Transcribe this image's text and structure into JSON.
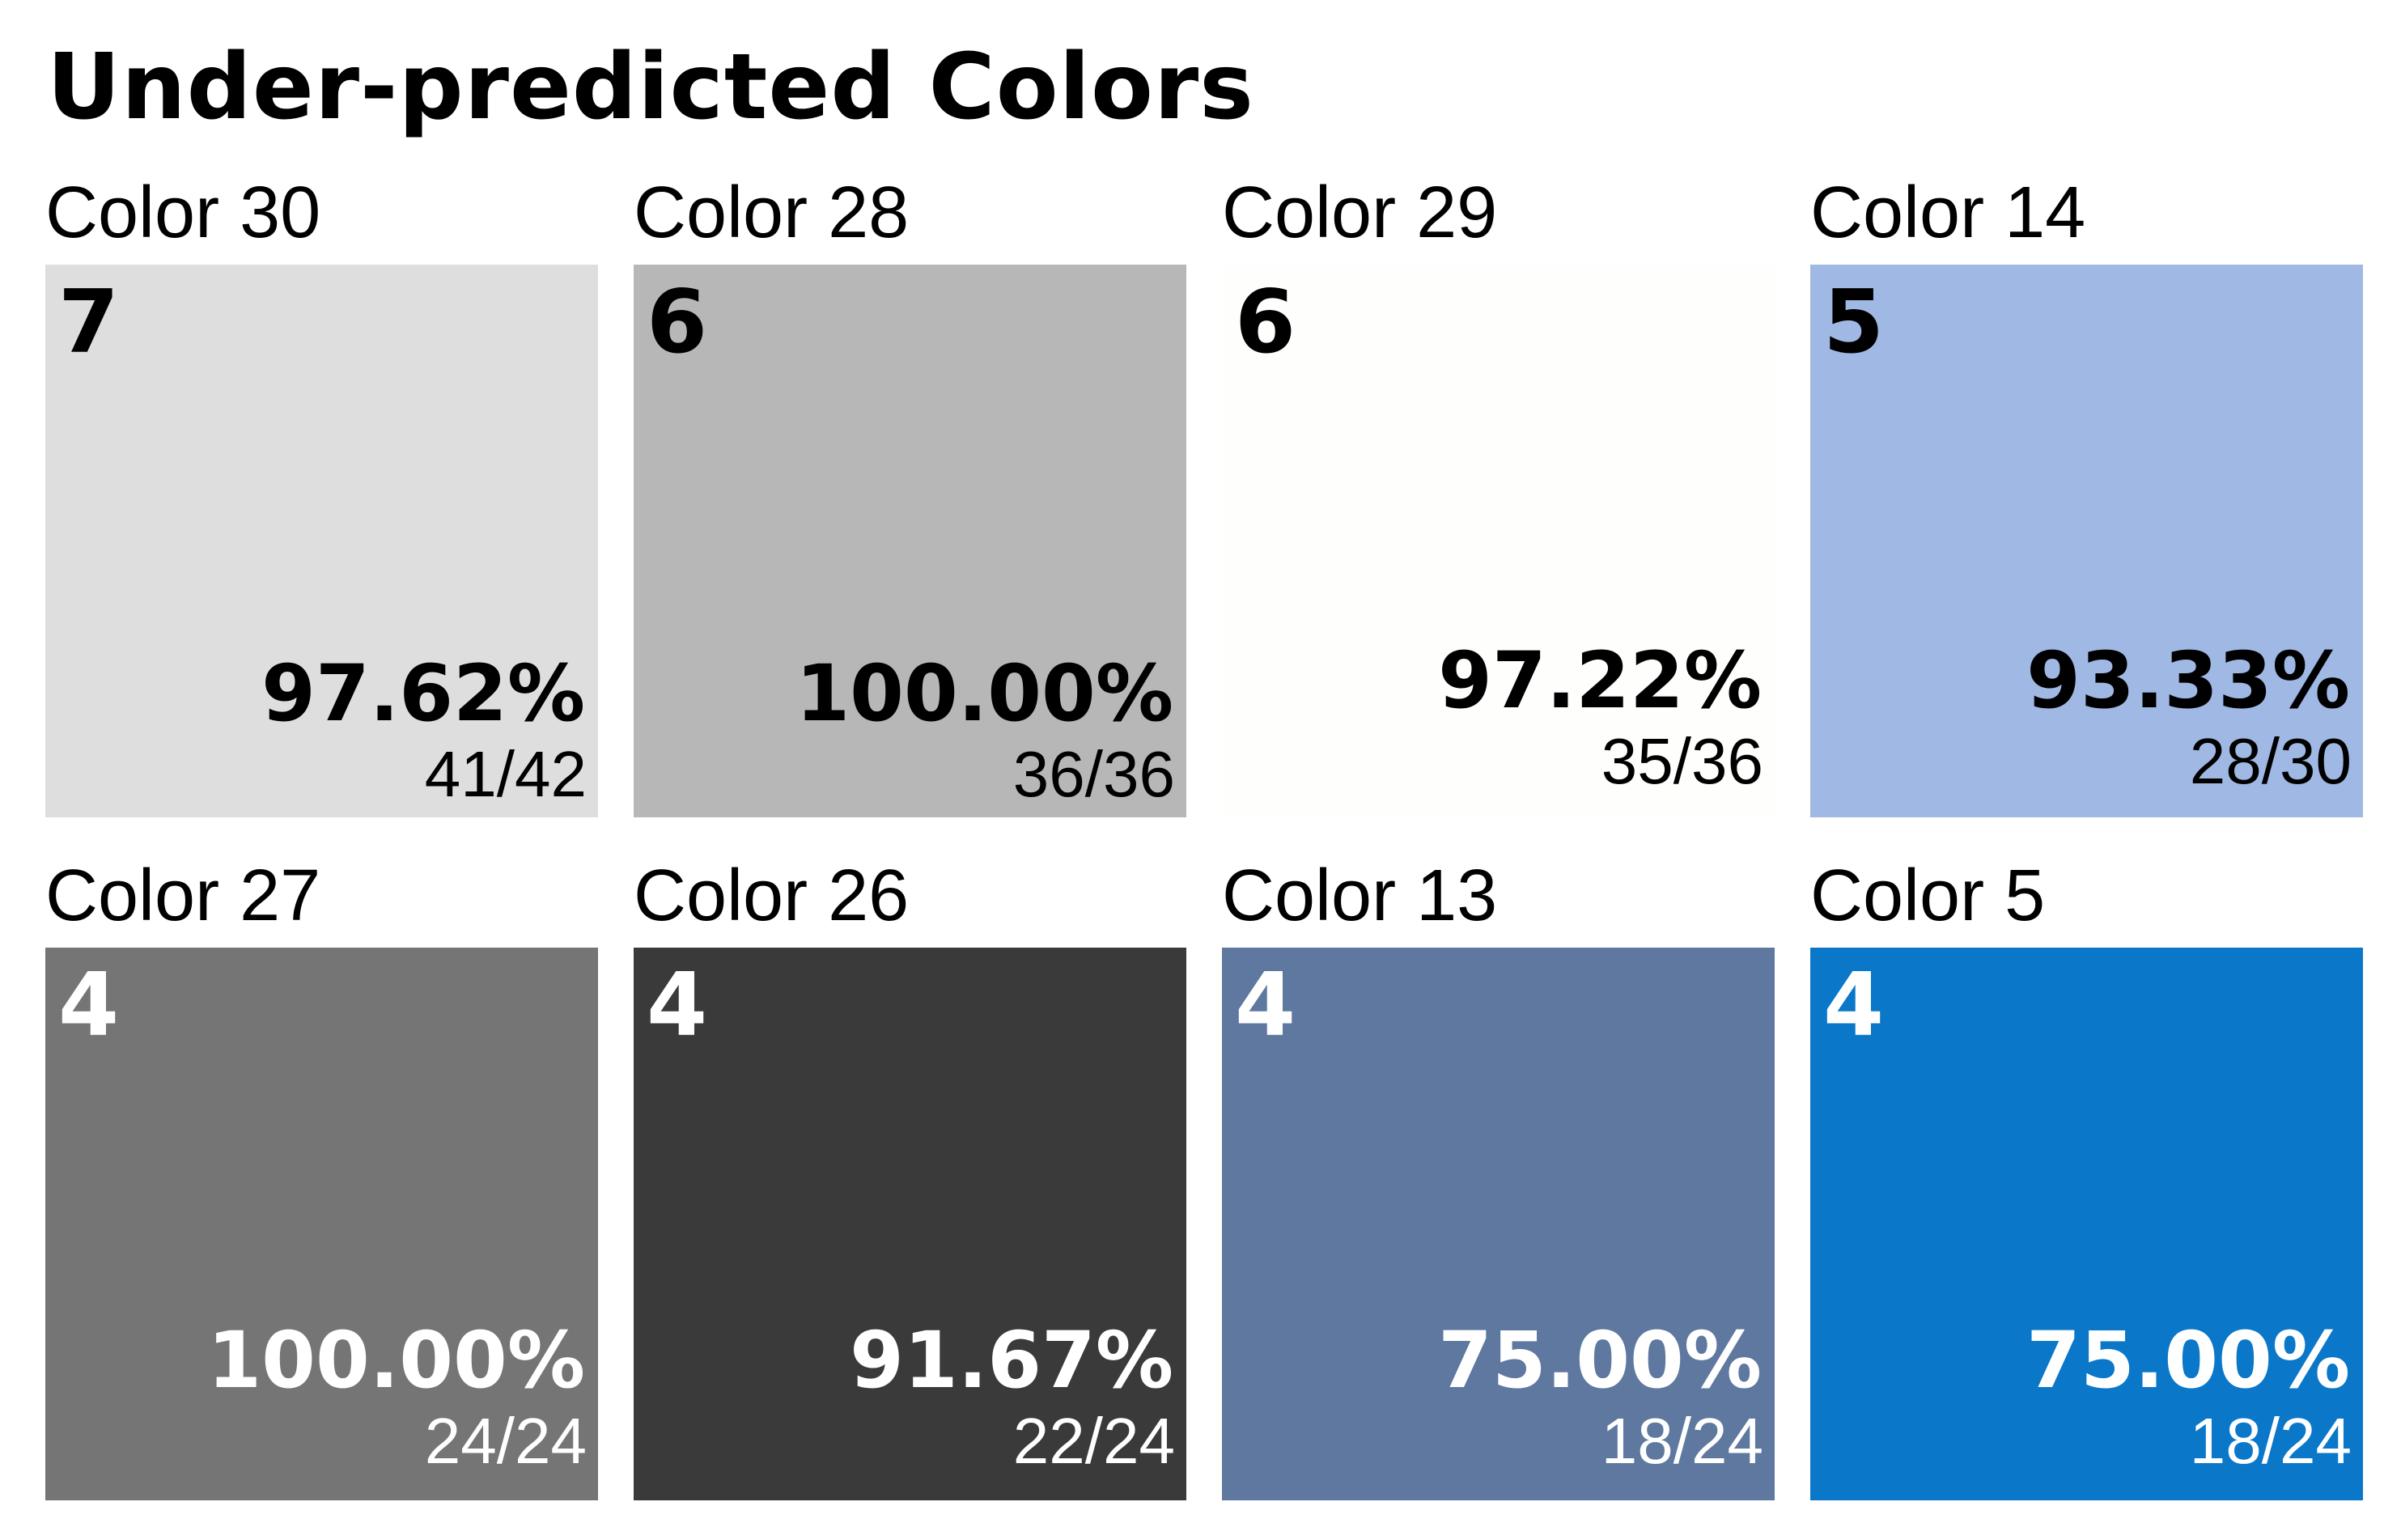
{
  "title": "Under-predicted Colors",
  "chart_data": {
    "type": "table",
    "title": "Under-predicted Colors",
    "items": [
      {
        "label": "Color 30",
        "rank": "7",
        "percent": "97.62%",
        "fraction": "41/42",
        "correct": 41,
        "total": 42,
        "color": "#dedede",
        "text_color": "#000000"
      },
      {
        "label": "Color 28",
        "rank": "6",
        "percent": "100.00%",
        "fraction": "36/36",
        "correct": 36,
        "total": 36,
        "color": "#b7b7b7",
        "text_color": "#000000"
      },
      {
        "label": "Color 29",
        "rank": "6",
        "percent": "97.22%",
        "fraction": "35/36",
        "correct": 35,
        "total": 36,
        "color": "#fefefc",
        "text_color": "#000000"
      },
      {
        "label": "Color 14",
        "rank": "5",
        "percent": "93.33%",
        "fraction": "28/30",
        "correct": 28,
        "total": 30,
        "color": "#a0b8e4",
        "text_color": "#000000"
      },
      {
        "label": "Color 27",
        "rank": "4",
        "percent": "100.00%",
        "fraction": "24/24",
        "correct": 24,
        "total": 24,
        "color": "#757575",
        "text_color": "#ffffff"
      },
      {
        "label": "Color 26",
        "rank": "4",
        "percent": "91.67%",
        "fraction": "22/24",
        "correct": 22,
        "total": 24,
        "color": "#3a3a3a",
        "text_color": "#ffffff"
      },
      {
        "label": "Color 13",
        "rank": "4",
        "percent": "75.00%",
        "fraction": "18/24",
        "correct": 18,
        "total": 24,
        "color": "#5e789f",
        "text_color": "#ffffff"
      },
      {
        "label": "Color 5",
        "rank": "4",
        "percent": "75.00%",
        "fraction": "18/24",
        "correct": 18,
        "total": 24,
        "color": "#0a77c9",
        "text_color": "#ffffff"
      }
    ]
  }
}
